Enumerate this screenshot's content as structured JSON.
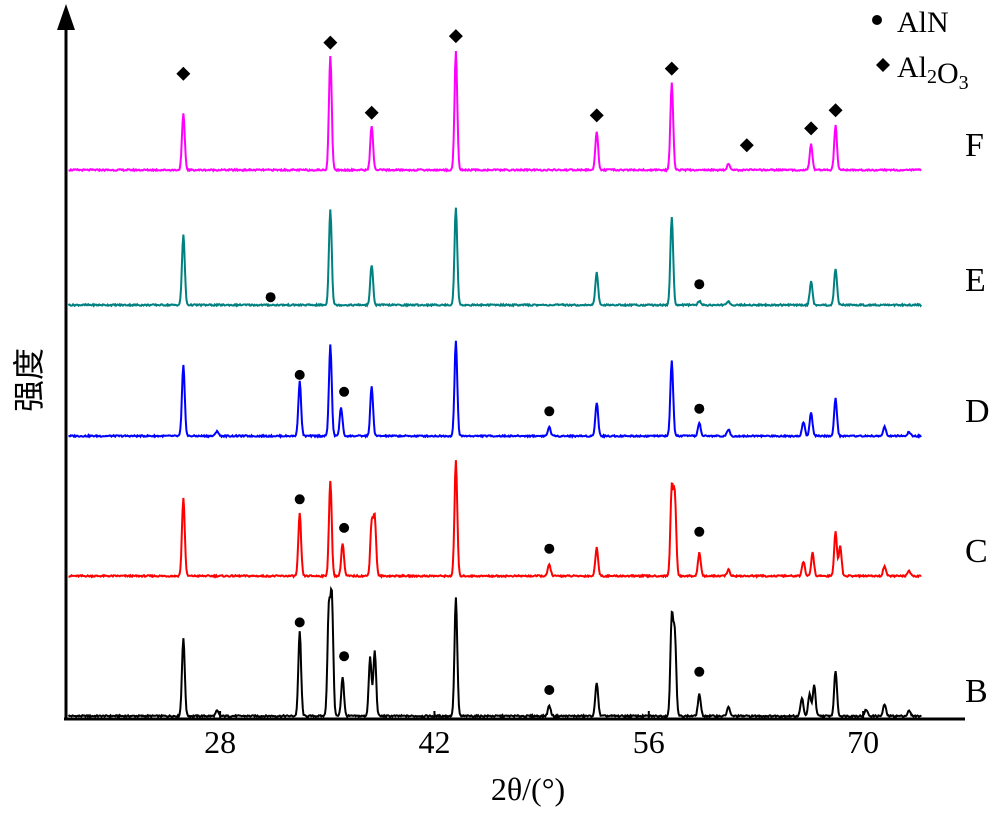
{
  "chart_data": {
    "type": "line",
    "xlabel": "2θ/(°)",
    "ylabel": "强度",
    "xlim": [
      18,
      76
    ],
    "ylim": [
      0,
      1
    ],
    "xticks": [
      28,
      42,
      56,
      70
    ],
    "grid": false,
    "legend_placement": "top-right",
    "legend": [
      {
        "label": "AlN",
        "marker": "circle"
      },
      {
        "label": "Al2O3",
        "marker": "diamond"
      }
    ],
    "series": [
      {
        "name": "B",
        "color": "#000000",
        "peaks": [
          {
            "x": 25.6,
            "h": 0.6
          },
          {
            "x": 27.8,
            "h": 0.04
          },
          {
            "x": 33.2,
            "h": 0.65
          },
          {
            "x": 35.1,
            "h": 0.8
          },
          {
            "x": 35.3,
            "h": 0.9
          },
          {
            "x": 36.0,
            "h": 0.3
          },
          {
            "x": 37.8,
            "h": 0.45
          },
          {
            "x": 38.1,
            "h": 0.5
          },
          {
            "x": 43.4,
            "h": 0.91
          },
          {
            "x": 49.5,
            "h": 0.08
          },
          {
            "x": 52.6,
            "h": 0.26
          },
          {
            "x": 57.5,
            "h": 0.75
          },
          {
            "x": 57.7,
            "h": 0.62
          },
          {
            "x": 59.3,
            "h": 0.17
          },
          {
            "x": 61.2,
            "h": 0.07
          },
          {
            "x": 66.0,
            "h": 0.14
          },
          {
            "x": 66.5,
            "h": 0.17
          },
          {
            "x": 66.8,
            "h": 0.24
          },
          {
            "x": 68.2,
            "h": 0.35
          },
          {
            "x": 70.2,
            "h": 0.05
          },
          {
            "x": 71.4,
            "h": 0.09
          },
          {
            "x": 73.0,
            "h": 0.04
          }
        ]
      },
      {
        "name": "C",
        "color": "#ff0000",
        "peaks": [
          {
            "x": 25.6,
            "h": 0.6
          },
          {
            "x": 33.2,
            "h": 0.48
          },
          {
            "x": 35.2,
            "h": 0.73
          },
          {
            "x": 36.0,
            "h": 0.25
          },
          {
            "x": 37.9,
            "h": 0.4
          },
          {
            "x": 38.1,
            "h": 0.44
          },
          {
            "x": 43.4,
            "h": 0.89
          },
          {
            "x": 49.5,
            "h": 0.09
          },
          {
            "x": 52.6,
            "h": 0.22
          },
          {
            "x": 57.5,
            "h": 0.66
          },
          {
            "x": 57.7,
            "h": 0.6
          },
          {
            "x": 59.3,
            "h": 0.18
          },
          {
            "x": 61.2,
            "h": 0.05
          },
          {
            "x": 66.1,
            "h": 0.11
          },
          {
            "x": 66.7,
            "h": 0.18
          },
          {
            "x": 68.2,
            "h": 0.34
          },
          {
            "x": 68.5,
            "h": 0.23
          },
          {
            "x": 71.4,
            "h": 0.08
          },
          {
            "x": 73.0,
            "h": 0.04
          }
        ]
      },
      {
        "name": "D",
        "color": "#0000ff",
        "peaks": [
          {
            "x": 25.6,
            "h": 0.54
          },
          {
            "x": 27.8,
            "h": 0.04
          },
          {
            "x": 33.2,
            "h": 0.42
          },
          {
            "x": 35.2,
            "h": 0.7
          },
          {
            "x": 35.9,
            "h": 0.22
          },
          {
            "x": 37.9,
            "h": 0.38
          },
          {
            "x": 43.4,
            "h": 0.73
          },
          {
            "x": 49.5,
            "h": 0.07
          },
          {
            "x": 52.6,
            "h": 0.26
          },
          {
            "x": 57.5,
            "h": 0.58
          },
          {
            "x": 59.3,
            "h": 0.1
          },
          {
            "x": 61.2,
            "h": 0.05
          },
          {
            "x": 66.1,
            "h": 0.11
          },
          {
            "x": 66.6,
            "h": 0.18
          },
          {
            "x": 68.2,
            "h": 0.29
          },
          {
            "x": 71.4,
            "h": 0.07
          },
          {
            "x": 73.0,
            "h": 0.03
          }
        ]
      },
      {
        "name": "E",
        "color": "#008080",
        "peaks": [
          {
            "x": 25.6,
            "h": 0.54
          },
          {
            "x": 35.2,
            "h": 0.74
          },
          {
            "x": 37.9,
            "h": 0.31
          },
          {
            "x": 43.4,
            "h": 0.75
          },
          {
            "x": 52.6,
            "h": 0.25
          },
          {
            "x": 57.5,
            "h": 0.68
          },
          {
            "x": 59.3,
            "h": 0.03
          },
          {
            "x": 61.2,
            "h": 0.03
          },
          {
            "x": 66.6,
            "h": 0.18
          },
          {
            "x": 68.2,
            "h": 0.28
          }
        ]
      },
      {
        "name": "F",
        "color": "#ff00ff",
        "peaks": [
          {
            "x": 25.6,
            "h": 0.43
          },
          {
            "x": 35.2,
            "h": 0.88
          },
          {
            "x": 37.9,
            "h": 0.34
          },
          {
            "x": 43.4,
            "h": 0.91
          },
          {
            "x": 52.6,
            "h": 0.3
          },
          {
            "x": 57.5,
            "h": 0.67
          },
          {
            "x": 61.2,
            "h": 0.05
          },
          {
            "x": 66.6,
            "h": 0.2
          },
          {
            "x": 68.2,
            "h": 0.34
          }
        ]
      }
    ],
    "markers": [
      {
        "series": "B",
        "type": "AlN",
        "x": 33.2,
        "h": 0.72
      },
      {
        "series": "B",
        "type": "AlN",
        "x": 36.1,
        "h": 0.46
      },
      {
        "series": "B",
        "type": "AlN",
        "x": 49.5,
        "h": 0.2
      },
      {
        "series": "B",
        "type": "AlN",
        "x": 59.3,
        "h": 0.34
      },
      {
        "series": "C",
        "type": "AlN",
        "x": 33.2,
        "h": 0.59
      },
      {
        "series": "C",
        "type": "AlN",
        "x": 36.1,
        "h": 0.37
      },
      {
        "series": "C",
        "type": "AlN",
        "x": 49.5,
        "h": 0.21
      },
      {
        "series": "C",
        "type": "AlN",
        "x": 59.3,
        "h": 0.34
      },
      {
        "series": "D",
        "type": "AlN",
        "x": 33.2,
        "h": 0.47
      },
      {
        "series": "D",
        "type": "AlN",
        "x": 36.1,
        "h": 0.34
      },
      {
        "series": "D",
        "type": "AlN",
        "x": 49.5,
        "h": 0.19
      },
      {
        "series": "D",
        "type": "AlN",
        "x": 59.3,
        "h": 0.21
      },
      {
        "series": "E",
        "type": "AlN",
        "x": 31.3,
        "h": 0.06
      },
      {
        "series": "E",
        "type": "AlN",
        "x": 59.3,
        "h": 0.16
      },
      {
        "series": "F",
        "type": "Al2O3",
        "x": 25.6,
        "h": 0.74
      },
      {
        "series": "F",
        "type": "Al2O3",
        "x": 35.2,
        "h": 0.98
      },
      {
        "series": "F",
        "type": "Al2O3",
        "x": 37.9,
        "h": 0.44
      },
      {
        "series": "F",
        "type": "Al2O3",
        "x": 43.4,
        "h": 1.03
      },
      {
        "series": "F",
        "type": "Al2O3",
        "x": 52.6,
        "h": 0.42
      },
      {
        "series": "F",
        "type": "Al2O3",
        "x": 57.5,
        "h": 0.78
      },
      {
        "series": "F",
        "type": "Al2O3",
        "x": 62.4,
        "h": 0.19
      },
      {
        "series": "F",
        "type": "Al2O3",
        "x": 66.6,
        "h": 0.32
      },
      {
        "series": "F",
        "type": "Al2O3",
        "x": 68.2,
        "h": 0.46
      }
    ]
  }
}
